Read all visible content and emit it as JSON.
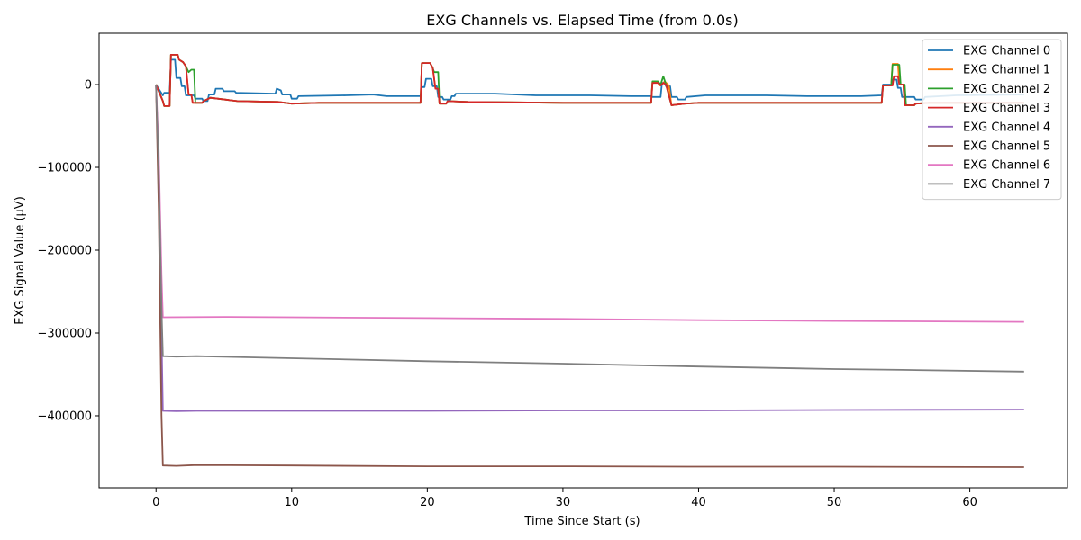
{
  "chart_data": {
    "type": "line",
    "title": "EXG Channels vs. Elapsed Time (from 0.0s)",
    "xlabel": "Time Since Start (s)",
    "ylabel": "EXG Signal Value (µV)",
    "xlim": [
      -4.2,
      67.2
    ],
    "ylim": [
      -487000,
      62000
    ],
    "x_ticks": [
      0,
      10,
      20,
      30,
      40,
      50,
      60
    ],
    "x_tick_labels": [
      "0",
      "10",
      "20",
      "30",
      "40",
      "50",
      "60"
    ],
    "y_ticks": [
      0,
      -100000,
      -200000,
      -300000,
      -400000
    ],
    "y_tick_labels": [
      "0",
      "−100000",
      "−200000",
      "−300000",
      "−400000"
    ],
    "grid": false,
    "legend_position": "top-right",
    "series": [
      {
        "name": "EXG Channel 0",
        "color": "#1f77b4",
        "points": [
          [
            0,
            0
          ],
          [
            0.3,
            -8000
          ],
          [
            0.5,
            -13000
          ],
          [
            0.6,
            -10000
          ],
          [
            1.0,
            -10000
          ],
          [
            1.1,
            30000
          ],
          [
            1.4,
            30000
          ],
          [
            1.5,
            8000
          ],
          [
            1.8,
            8000
          ],
          [
            1.9,
            -2000
          ],
          [
            2.1,
            -2000
          ],
          [
            2.2,
            -13000
          ],
          [
            2.8,
            -13000
          ],
          [
            2.9,
            -17000
          ],
          [
            3.4,
            -17000
          ],
          [
            3.5,
            -20000
          ],
          [
            3.8,
            -20000
          ],
          [
            3.9,
            -12000
          ],
          [
            4.3,
            -12000
          ],
          [
            4.4,
            -5000
          ],
          [
            4.9,
            -5000
          ],
          [
            5.0,
            -8000
          ],
          [
            5.8,
            -8000
          ],
          [
            5.9,
            -10000
          ],
          [
            8.8,
            -11000
          ],
          [
            8.9,
            -5000
          ],
          [
            9.2,
            -7000
          ],
          [
            9.3,
            -12000
          ],
          [
            9.9,
            -12000
          ],
          [
            10.0,
            -17000
          ],
          [
            10.4,
            -17000
          ],
          [
            10.5,
            -14000
          ],
          [
            14,
            -13000
          ],
          [
            16,
            -12000
          ],
          [
            17,
            -14000
          ],
          [
            19.5,
            -14000
          ],
          [
            19.6,
            -3000
          ],
          [
            19.8,
            -3000
          ],
          [
            19.9,
            7000
          ],
          [
            20.3,
            7000
          ],
          [
            20.4,
            -2000
          ],
          [
            20.7,
            -2000
          ],
          [
            20.8,
            -15000
          ],
          [
            21.1,
            -15000
          ],
          [
            21.2,
            -18000
          ],
          [
            21.7,
            -18000
          ],
          [
            21.8,
            -14000
          ],
          [
            22.0,
            -14000
          ],
          [
            22.1,
            -11000
          ],
          [
            25,
            -11000
          ],
          [
            28,
            -13000
          ],
          [
            32,
            -13000
          ],
          [
            35,
            -14000
          ],
          [
            36.5,
            -14000
          ],
          [
            36.6,
            -15000
          ],
          [
            37.2,
            -15000
          ],
          [
            37.3,
            2000
          ],
          [
            37.5,
            2000
          ],
          [
            37.6,
            -2000
          ],
          [
            37.9,
            -2000
          ],
          [
            38.0,
            -15000
          ],
          [
            38.4,
            -15000
          ],
          [
            38.5,
            -18000
          ],
          [
            39.0,
            -18000
          ],
          [
            39.1,
            -15000
          ],
          [
            40.5,
            -13000
          ],
          [
            45,
            -13000
          ],
          [
            48,
            -14000
          ],
          [
            52,
            -14000
          ],
          [
            53.5,
            -13000
          ],
          [
            53.6,
            0
          ],
          [
            54.2,
            0
          ],
          [
            54.3,
            6000
          ],
          [
            54.6,
            6000
          ],
          [
            54.7,
            -4000
          ],
          [
            54.9,
            -4000
          ],
          [
            55.0,
            -15000
          ],
          [
            55.9,
            -15000
          ],
          [
            56.0,
            -18000
          ],
          [
            56.6,
            -18000
          ],
          [
            56.7,
            -15000
          ],
          [
            59,
            -13000
          ],
          [
            64,
            -12000
          ]
        ]
      },
      {
        "name": "EXG Channel 1",
        "color": "#ff7f0e",
        "points": [
          [
            0,
            0
          ],
          [
            0.5,
            -20000
          ],
          [
            0.6,
            -26000
          ],
          [
            1.0,
            -26000
          ],
          [
            1.1,
            36000
          ],
          [
            1.6,
            36000
          ],
          [
            1.7,
            30000
          ],
          [
            2.0,
            27000
          ],
          [
            2.2,
            22000
          ],
          [
            2.4,
            -12000
          ],
          [
            2.6,
            -12000
          ],
          [
            2.7,
            -22000
          ],
          [
            3.4,
            -22000
          ],
          [
            3.5,
            -20000
          ],
          [
            4.0,
            -16000
          ],
          [
            6,
            -20000
          ],
          [
            9,
            -21000
          ],
          [
            10,
            -23000
          ],
          [
            12,
            -22000
          ],
          [
            19.5,
            -22000
          ],
          [
            19.6,
            26000
          ],
          [
            20.2,
            26000
          ],
          [
            20.4,
            20000
          ],
          [
            20.6,
            -5000
          ],
          [
            20.8,
            -5000
          ],
          [
            20.9,
            -23000
          ],
          [
            21.4,
            -23000
          ],
          [
            21.5,
            -20000
          ],
          [
            23,
            -21000
          ],
          [
            30,
            -22000
          ],
          [
            36.5,
            -22000
          ],
          [
            36.6,
            3000
          ],
          [
            37.0,
            3000
          ],
          [
            37.1,
            -1000
          ],
          [
            37.3,
            0
          ],
          [
            37.5,
            4000
          ],
          [
            37.8,
            -1000
          ],
          [
            38.0,
            -25000
          ],
          [
            39,
            -23000
          ],
          [
            40,
            -22000
          ],
          [
            53.5,
            -22000
          ],
          [
            53.6,
            -1000
          ],
          [
            54.2,
            -1000
          ],
          [
            54.3,
            25000
          ],
          [
            54.7,
            25000
          ],
          [
            54.8,
            0
          ],
          [
            55.1,
            0
          ],
          [
            55.2,
            -25000
          ],
          [
            55.9,
            -25000
          ],
          [
            56.0,
            -23000
          ],
          [
            57,
            -22000
          ],
          [
            64,
            -22000
          ]
        ]
      },
      {
        "name": "EXG Channel 2",
        "color": "#2ca02c",
        "points": [
          [
            0,
            0
          ],
          [
            0.5,
            -20000
          ],
          [
            0.6,
            -26000
          ],
          [
            1.0,
            -26000
          ],
          [
            1.1,
            36000
          ],
          [
            1.6,
            36000
          ],
          [
            1.7,
            30000
          ],
          [
            2.0,
            27000
          ],
          [
            2.2,
            22000
          ],
          [
            2.4,
            15000
          ],
          [
            2.6,
            18000
          ],
          [
            2.8,
            18000
          ],
          [
            2.9,
            -22000
          ],
          [
            3.4,
            -22000
          ],
          [
            3.5,
            -20000
          ],
          [
            4.0,
            -16000
          ],
          [
            6,
            -20000
          ],
          [
            9,
            -21000
          ],
          [
            10,
            -23000
          ],
          [
            12,
            -22000
          ],
          [
            19.5,
            -22000
          ],
          [
            19.6,
            26000
          ],
          [
            20.2,
            26000
          ],
          [
            20.4,
            20000
          ],
          [
            20.5,
            15000
          ],
          [
            20.8,
            15000
          ],
          [
            20.9,
            -23000
          ],
          [
            21.4,
            -23000
          ],
          [
            21.5,
            -20000
          ],
          [
            23,
            -21000
          ],
          [
            30,
            -22000
          ],
          [
            36.5,
            -22000
          ],
          [
            36.6,
            4000
          ],
          [
            37.0,
            4000
          ],
          [
            37.2,
            0
          ],
          [
            37.4,
            10000
          ],
          [
            37.6,
            0
          ],
          [
            38.0,
            -25000
          ],
          [
            39,
            -23000
          ],
          [
            40,
            -22000
          ],
          [
            53.5,
            -22000
          ],
          [
            53.6,
            -1000
          ],
          [
            54.2,
            -1000
          ],
          [
            54.3,
            24000
          ],
          [
            54.8,
            24000
          ],
          [
            54.9,
            0
          ],
          [
            55.2,
            0
          ],
          [
            55.3,
            -25000
          ],
          [
            55.9,
            -25000
          ],
          [
            56.0,
            -23000
          ],
          [
            57,
            -22000
          ],
          [
            64,
            -22000
          ]
        ]
      },
      {
        "name": "EXG Channel 3",
        "color": "#d62728",
        "points": [
          [
            0,
            0
          ],
          [
            0.5,
            -20000
          ],
          [
            0.6,
            -26000
          ],
          [
            1.0,
            -26000
          ],
          [
            1.1,
            36000
          ],
          [
            1.6,
            36000
          ],
          [
            1.7,
            30000
          ],
          [
            2.0,
            27000
          ],
          [
            2.2,
            22000
          ],
          [
            2.4,
            -12000
          ],
          [
            2.6,
            -12000
          ],
          [
            2.7,
            -22000
          ],
          [
            3.4,
            -22000
          ],
          [
            3.5,
            -20000
          ],
          [
            4.0,
            -16000
          ],
          [
            6,
            -20000
          ],
          [
            9,
            -21000
          ],
          [
            10,
            -23000
          ],
          [
            12,
            -22000
          ],
          [
            19.5,
            -22000
          ],
          [
            19.6,
            26000
          ],
          [
            20.2,
            26000
          ],
          [
            20.4,
            20000
          ],
          [
            20.6,
            -5000
          ],
          [
            20.8,
            -5000
          ],
          [
            20.9,
            -23000
          ],
          [
            21.4,
            -23000
          ],
          [
            21.5,
            -20000
          ],
          [
            23,
            -21000
          ],
          [
            30,
            -22000
          ],
          [
            36.5,
            -22000
          ],
          [
            36.6,
            2000
          ],
          [
            37.0,
            2000
          ],
          [
            37.2,
            -1000
          ],
          [
            37.4,
            2000
          ],
          [
            37.6,
            0
          ],
          [
            38.0,
            -25000
          ],
          [
            39,
            -23000
          ],
          [
            40,
            -22000
          ],
          [
            53.5,
            -22000
          ],
          [
            53.6,
            -1000
          ],
          [
            54.3,
            -1000
          ],
          [
            54.4,
            10000
          ],
          [
            54.7,
            10000
          ],
          [
            54.8,
            0
          ],
          [
            55.1,
            0
          ],
          [
            55.2,
            -25000
          ],
          [
            55.9,
            -25000
          ],
          [
            56.0,
            -23000
          ],
          [
            57,
            -22000
          ],
          [
            64,
            -22000
          ]
        ]
      },
      {
        "name": "EXG Channel 4",
        "color": "#9467bd",
        "points": [
          [
            0,
            0
          ],
          [
            0.2,
            -100000
          ],
          [
            0.4,
            -300000
          ],
          [
            0.5,
            -394000
          ],
          [
            1.5,
            -394500
          ],
          [
            3,
            -394000
          ],
          [
            10,
            -394000
          ],
          [
            20,
            -394000
          ],
          [
            30,
            -393500
          ],
          [
            40,
            -393500
          ],
          [
            50,
            -393000
          ],
          [
            64,
            -392500
          ]
        ]
      },
      {
        "name": "EXG Channel 5",
        "color": "#8c564b",
        "points": [
          [
            0,
            0
          ],
          [
            0.2,
            -150000
          ],
          [
            0.4,
            -400000
          ],
          [
            0.5,
            -460000
          ],
          [
            1.5,
            -460500
          ],
          [
            3,
            -459500
          ],
          [
            10,
            -460000
          ],
          [
            20,
            -461000
          ],
          [
            30,
            -461000
          ],
          [
            40,
            -461500
          ],
          [
            50,
            -461500
          ],
          [
            64,
            -462000
          ]
        ]
      },
      {
        "name": "EXG Channel 6",
        "color": "#e377c2",
        "points": [
          [
            0,
            0
          ],
          [
            0.2,
            -80000
          ],
          [
            0.4,
            -230000
          ],
          [
            0.5,
            -281000
          ],
          [
            5,
            -280500
          ],
          [
            10,
            -281000
          ],
          [
            20,
            -282000
          ],
          [
            30,
            -283000
          ],
          [
            40,
            -284500
          ],
          [
            50,
            -285500
          ],
          [
            64,
            -286500
          ]
        ]
      },
      {
        "name": "EXG Channel 7",
        "color": "#7f7f7f",
        "points": [
          [
            0,
            0
          ],
          [
            0.2,
            -100000
          ],
          [
            0.4,
            -270000
          ],
          [
            0.5,
            -328000
          ],
          [
            1.5,
            -328500
          ],
          [
            3,
            -328000
          ],
          [
            10,
            -330500
          ],
          [
            20,
            -334000
          ],
          [
            30,
            -337000
          ],
          [
            40,
            -340500
          ],
          [
            50,
            -343500
          ],
          [
            55,
            -344500
          ],
          [
            64,
            -346500
          ]
        ]
      }
    ]
  }
}
